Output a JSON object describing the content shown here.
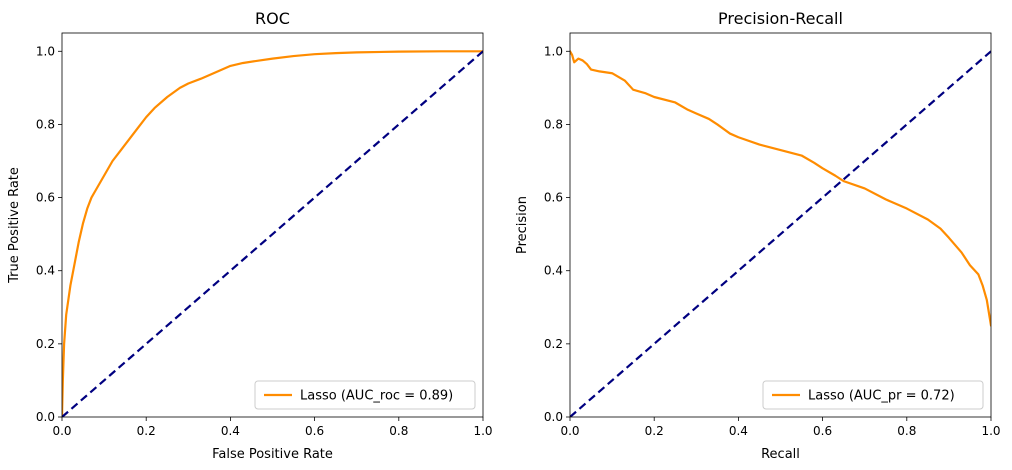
{
  "colors": {
    "model_curve": "#ff8c00",
    "reference_line": "#000080",
    "axes": "#000000",
    "legend_border": "#cccccc"
  },
  "chart_data": [
    {
      "type": "line",
      "title": "ROC",
      "xlabel": "False Positive Rate",
      "ylabel": "True Positive Rate",
      "xlim": [
        0.0,
        1.0
      ],
      "ylim": [
        0.0,
        1.05
      ],
      "xticks": [
        0.0,
        0.2,
        0.4,
        0.6,
        0.8,
        1.0
      ],
      "yticks": [
        0.0,
        0.2,
        0.4,
        0.6,
        0.8,
        1.0
      ],
      "xtick_labels": [
        "0.0",
        "0.2",
        "0.4",
        "0.6",
        "0.8",
        "1.0"
      ],
      "ytick_labels": [
        "0.0",
        "0.2",
        "0.4",
        "0.6",
        "0.8",
        "1.0"
      ],
      "grid": false,
      "legend_position": "lower-right",
      "series": [
        {
          "name": "Lasso (AUC_roc = 0.89)",
          "style": "solid",
          "x": [
            0,
            0.002,
            0.005,
            0.01,
            0.02,
            0.03,
            0.04,
            0.05,
            0.06,
            0.07,
            0.08,
            0.1,
            0.12,
            0.14,
            0.16,
            0.18,
            0.2,
            0.22,
            0.25,
            0.28,
            0.3,
            0.33,
            0.36,
            0.4,
            0.43,
            0.47,
            0.5,
            0.55,
            0.6,
            0.65,
            0.7,
            0.8,
            0.9,
            1.0
          ],
          "y": [
            0,
            0.1,
            0.2,
            0.28,
            0.36,
            0.42,
            0.48,
            0.53,
            0.57,
            0.6,
            0.62,
            0.66,
            0.7,
            0.73,
            0.76,
            0.79,
            0.82,
            0.845,
            0.875,
            0.9,
            0.912,
            0.925,
            0.94,
            0.96,
            0.968,
            0.975,
            0.98,
            0.987,
            0.992,
            0.995,
            0.997,
            0.999,
            1.0,
            1.0
          ]
        },
        {
          "name": "",
          "style": "dashed",
          "x": [
            0,
            1
          ],
          "y": [
            0,
            1
          ]
        }
      ]
    },
    {
      "type": "line",
      "title": "Precision-Recall",
      "xlabel": "Recall",
      "ylabel": "Precision",
      "xlim": [
        0.0,
        1.0
      ],
      "ylim": [
        0.0,
        1.05
      ],
      "xticks": [
        0.0,
        0.2,
        0.4,
        0.6,
        0.8,
        1.0
      ],
      "yticks": [
        0.0,
        0.2,
        0.4,
        0.6,
        0.8,
        1.0
      ],
      "xtick_labels": [
        "0.0",
        "0.2",
        "0.4",
        "0.6",
        "0.8",
        "1.0"
      ],
      "ytick_labels": [
        "0.0",
        "0.2",
        "0.4",
        "0.6",
        "0.8",
        "1.0"
      ],
      "grid": false,
      "legend_position": "lower-right",
      "series": [
        {
          "name": "Lasso (AUC_pr = 0.72)",
          "style": "solid",
          "x": [
            0,
            0.005,
            0.01,
            0.02,
            0.03,
            0.04,
            0.05,
            0.07,
            0.1,
            0.13,
            0.15,
            0.18,
            0.2,
            0.25,
            0.28,
            0.3,
            0.33,
            0.35,
            0.38,
            0.4,
            0.45,
            0.5,
            0.55,
            0.58,
            0.6,
            0.63,
            0.65,
            0.7,
            0.75,
            0.8,
            0.85,
            0.88,
            0.9,
            0.93,
            0.95,
            0.97,
            0.98,
            0.99,
            1.0
          ],
          "y": [
            1.0,
            0.99,
            0.97,
            0.98,
            0.975,
            0.965,
            0.95,
            0.945,
            0.94,
            0.92,
            0.895,
            0.885,
            0.875,
            0.86,
            0.84,
            0.83,
            0.815,
            0.8,
            0.775,
            0.765,
            0.745,
            0.73,
            0.715,
            0.695,
            0.68,
            0.66,
            0.645,
            0.625,
            0.595,
            0.57,
            0.54,
            0.515,
            0.49,
            0.45,
            0.415,
            0.39,
            0.36,
            0.32,
            0.25
          ]
        },
        {
          "name": "",
          "style": "dashed",
          "x": [
            0,
            1
          ],
          "y": [
            0,
            1
          ]
        }
      ]
    }
  ]
}
